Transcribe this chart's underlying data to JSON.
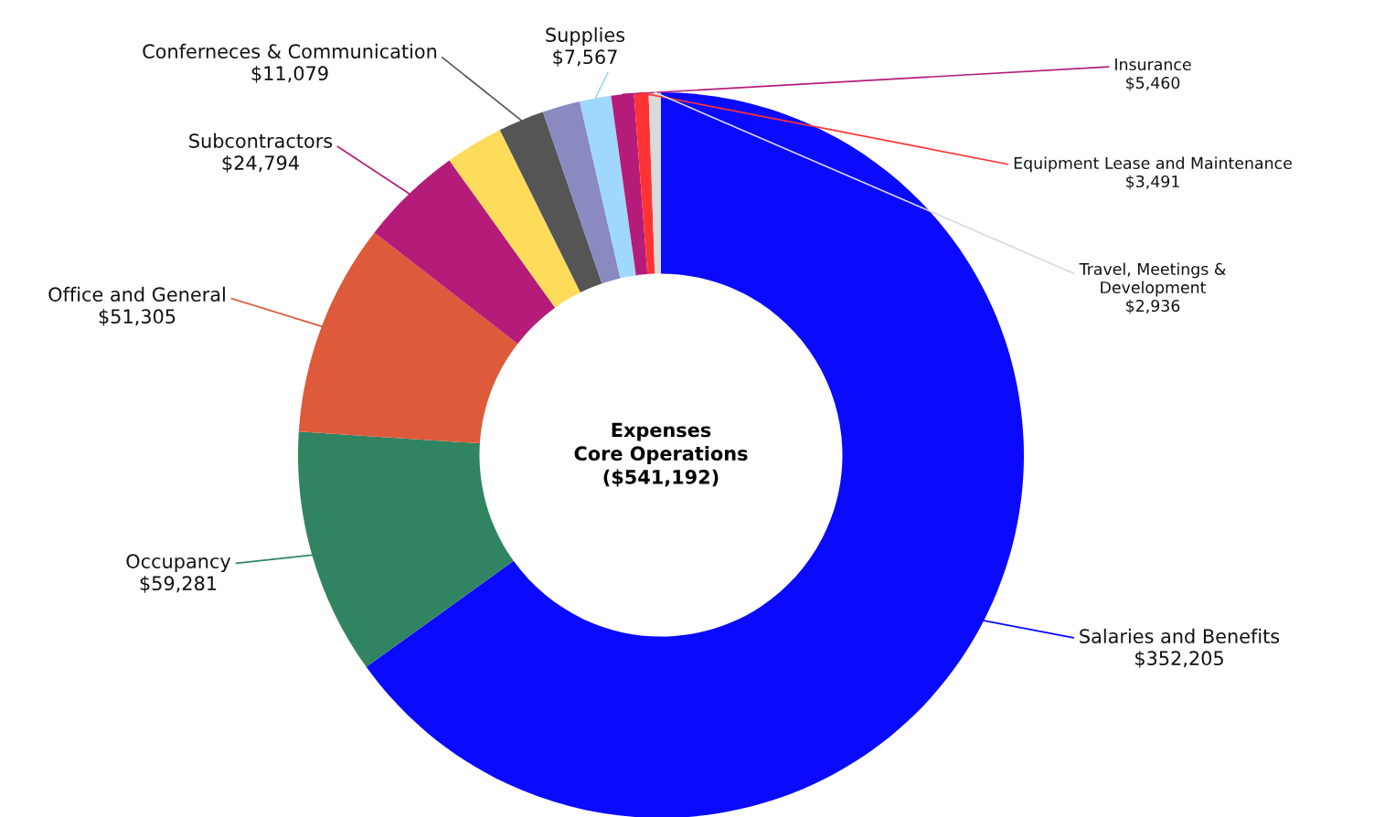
{
  "chart_data": {
    "type": "donut",
    "title": "Expenses\nCore Operations\n($541,192)",
    "categories": [
      "Salaries and Benefits",
      "Occupancy",
      "Office and General",
      "Subcontractors",
      null,
      "Conferneces & Communication",
      null,
      "Supplies",
      "Insurance",
      "Equipment Lease and Maintenance",
      "Travel, Meetings &\nDevelopment"
    ],
    "values": [
      352205,
      59281,
      51305,
      24794,
      14000,
      11079,
      9074,
      7567,
      5460,
      3491,
      2936
    ],
    "value_labels": [
      "$352,205",
      "$59,281",
      "$51,305",
      "$24,794",
      null,
      "$11,079",
      null,
      "$7,567",
      "$5,460",
      "$3,491",
      "$2,936"
    ],
    "colors": [
      "#0a0aff",
      "#318462",
      "#dd5a3a",
      "#b51c7a",
      "#fddc5c",
      "#555555",
      "#8a8ac0",
      "#9fd8fc",
      "#b51c7a",
      "#ff3333",
      "#d9d9d9"
    ],
    "legend": false
  }
}
